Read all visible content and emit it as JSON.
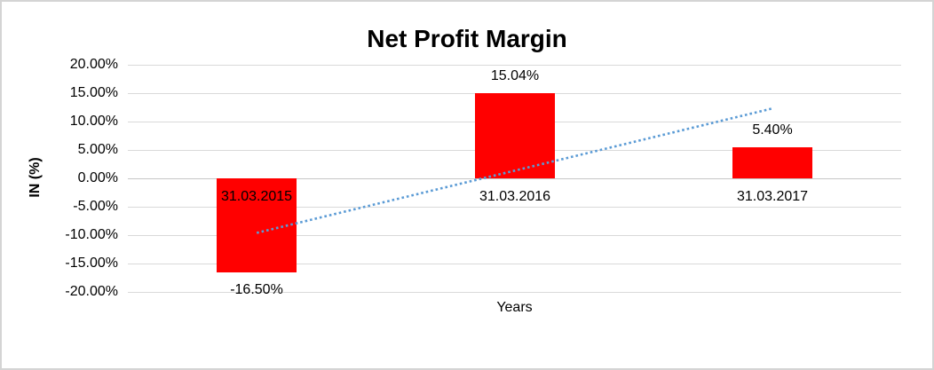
{
  "window": {
    "background_color": "#ffffff",
    "border_color": "#d4d4d4"
  },
  "chart_data": {
    "type": "bar",
    "title": "Net Profit Margin",
    "xlabel": "Years",
    "ylabel": "IN (%)",
    "categories": [
      "31.03.2015",
      "31.03.2016",
      "31.03.2017"
    ],
    "values": [
      -16.5,
      15.04,
      5.4
    ],
    "value_labels": [
      "-16.50%",
      "15.04%",
      "5.40%"
    ],
    "bar_color": "#ff0000",
    "ylim": [
      -20,
      20
    ],
    "ytick_values": [
      20,
      15,
      10,
      5,
      0,
      -5,
      -10,
      -15,
      -20
    ],
    "ytick_labels": [
      "20.00%",
      "15.00%",
      "10.00%",
      "5.00%",
      "0.00%",
      "-5.00%",
      "-10.00%",
      "-15.00%",
      "-20.00%"
    ],
    "gridlines": true,
    "gridline_color": "#d9d9d9",
    "legend_position": "none",
    "trendline": {
      "style": "dotted",
      "color": "#5b9bd5",
      "start_value": -9.6,
      "end_value": 12.3
    }
  }
}
